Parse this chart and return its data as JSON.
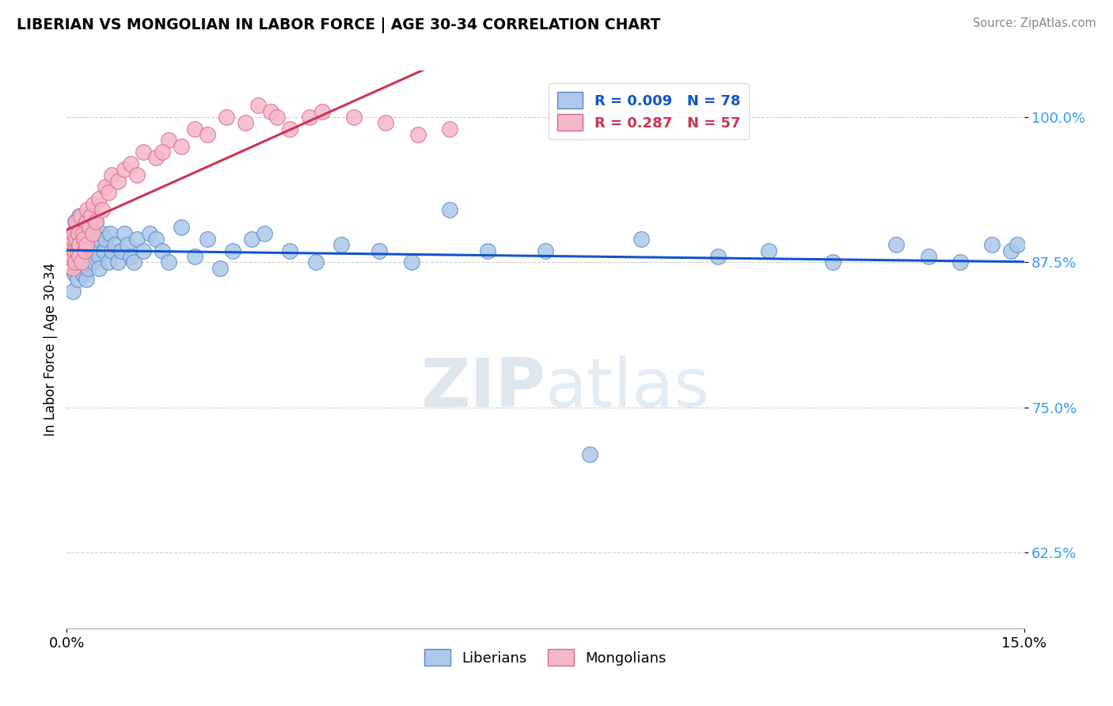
{
  "title": "LIBERIAN VS MONGOLIAN IN LABOR FORCE | AGE 30-34 CORRELATION CHART",
  "source": "Source: ZipAtlas.com",
  "ylabel": "In Labor Force | Age 30-34",
  "xlim": [
    0.0,
    15.0
  ],
  "ylim": [
    56.0,
    104.0
  ],
  "ytick_labels": [
    "62.5%",
    "75.0%",
    "87.5%",
    "100.0%"
  ],
  "ytick_values": [
    62.5,
    75.0,
    87.5,
    100.0
  ],
  "legend_r_liberian": "R = 0.009",
  "legend_n_liberian": "N = 78",
  "legend_r_mongolian": "R = 0.287",
  "legend_n_mongolian": "N = 57",
  "liberian_color": "#adc8e8",
  "mongolian_color": "#f5b8c8",
  "liberian_edge": "#5588cc",
  "mongolian_edge": "#dd6688",
  "trend_liberian_color": "#1155cc",
  "trend_mongolian_color": "#cc3355",
  "lib_x": [
    0.05,
    0.08,
    0.1,
    0.1,
    0.12,
    0.12,
    0.13,
    0.15,
    0.15,
    0.16,
    0.17,
    0.18,
    0.18,
    0.2,
    0.2,
    0.22,
    0.22,
    0.25,
    0.25,
    0.27,
    0.28,
    0.3,
    0.3,
    0.32,
    0.33,
    0.35,
    0.38,
    0.4,
    0.42,
    0.45,
    0.48,
    0.5,
    0.5,
    0.55,
    0.58,
    0.6,
    0.65,
    0.68,
    0.7,
    0.75,
    0.8,
    0.85,
    0.9,
    0.95,
    1.0,
    1.05,
    1.1,
    1.2,
    1.3,
    1.4,
    1.5,
    1.6,
    1.8,
    2.0,
    2.2,
    2.4,
    2.6,
    2.9,
    3.1,
    3.5,
    3.9,
    4.3,
    4.9,
    5.4,
    6.0,
    6.6,
    7.5,
    8.2,
    9.0,
    10.2,
    11.0,
    12.0,
    13.0,
    13.5,
    14.0,
    14.5,
    14.8,
    14.9
  ],
  "lib_y": [
    88.5,
    87.0,
    90.0,
    85.0,
    89.5,
    86.5,
    91.0,
    88.0,
    87.5,
    90.5,
    86.0,
    89.0,
    87.5,
    91.5,
    88.0,
    87.0,
    89.5,
    88.5,
    86.5,
    90.0,
    87.5,
    89.0,
    86.0,
    88.5,
    87.0,
    90.5,
    89.0,
    88.5,
    87.5,
    91.0,
    89.5,
    88.0,
    87.0,
    90.0,
    88.5,
    89.5,
    87.5,
    90.0,
    88.5,
    89.0,
    87.5,
    88.5,
    90.0,
    89.0,
    88.0,
    87.5,
    89.5,
    88.5,
    90.0,
    89.5,
    88.5,
    87.5,
    90.5,
    88.0,
    89.5,
    87.0,
    88.5,
    89.5,
    90.0,
    88.5,
    87.5,
    89.0,
    88.5,
    87.5,
    92.0,
    88.5,
    88.5,
    71.0,
    89.5,
    88.0,
    88.5,
    87.5,
    89.0,
    88.0,
    87.5,
    89.0,
    88.5,
    89.0
  ],
  "mon_x": [
    0.05,
    0.06,
    0.07,
    0.08,
    0.09,
    0.1,
    0.1,
    0.11,
    0.12,
    0.13,
    0.15,
    0.15,
    0.17,
    0.18,
    0.2,
    0.2,
    0.22,
    0.23,
    0.25,
    0.27,
    0.28,
    0.3,
    0.3,
    0.32,
    0.35,
    0.38,
    0.4,
    0.42,
    0.45,
    0.5,
    0.55,
    0.6,
    0.65,
    0.7,
    0.8,
    0.9,
    1.0,
    1.1,
    1.2,
    1.4,
    1.6,
    1.8,
    2.0,
    2.2,
    2.5,
    2.8,
    3.0,
    3.2,
    3.3,
    3.5,
    3.8,
    4.0,
    4.5,
    5.0,
    5.5,
    6.0,
    1.5
  ],
  "mon_y": [
    88.0,
    88.5,
    87.5,
    89.0,
    88.0,
    89.5,
    87.0,
    90.0,
    88.5,
    87.5,
    91.0,
    89.5,
    88.5,
    90.0,
    89.0,
    88.0,
    91.5,
    87.5,
    90.0,
    89.5,
    88.5,
    91.0,
    89.0,
    92.0,
    90.5,
    91.5,
    90.0,
    92.5,
    91.0,
    93.0,
    92.0,
    94.0,
    93.5,
    95.0,
    94.5,
    95.5,
    96.0,
    95.0,
    97.0,
    96.5,
    98.0,
    97.5,
    99.0,
    98.5,
    100.0,
    99.5,
    101.0,
    100.5,
    100.0,
    99.0,
    100.0,
    100.5,
    100.0,
    99.5,
    98.5,
    99.0,
    97.0
  ]
}
